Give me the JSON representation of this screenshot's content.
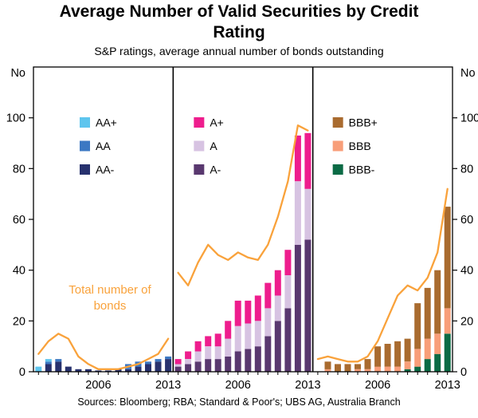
{
  "chart_data": {
    "type": "bar",
    "stacked": true,
    "title": "Average Number of Valid Securities by Credit Rating",
    "subtitle": "S&P ratings, average annual number of bonds outstanding",
    "sources": "Sources: Bloomberg; RBA; Standard & Poor's; UBS AG, Australia Branch",
    "unit_label": "No",
    "ylim": [
      0,
      120
    ],
    "yticks": [
      0,
      20,
      40,
      60,
      80,
      100
    ],
    "grid": false,
    "legend_position": "inside-top-of-each-panel",
    "years": [
      2000,
      2001,
      2002,
      2003,
      2004,
      2005,
      2006,
      2007,
      2008,
      2009,
      2010,
      2011,
      2012,
      2013
    ],
    "xtick_years": [
      2006,
      2013
    ],
    "total_line": {
      "label_lines": [
        "Total number of",
        "bonds"
      ],
      "color": "#F9A23B"
    },
    "panels": [
      {
        "group": "AA",
        "series": [
          {
            "name": "AA+",
            "color": "#5EC5EE",
            "values": [
              2,
              1,
              0,
              0,
              0,
              0,
              0,
              0,
              0,
              0,
              0,
              0,
              0,
              0
            ]
          },
          {
            "name": "AA",
            "color": "#3C78C3",
            "values": [
              0,
              1,
              1,
              0,
              0,
              0,
              0,
              0,
              0,
              2,
              2,
              1,
              1,
              1
            ]
          },
          {
            "name": "AA-",
            "color": "#27316E",
            "values": [
              0,
              3,
              4,
              2,
              1,
              1,
              0.5,
              0.5,
              1,
              1,
              2,
              3,
              4,
              5
            ]
          }
        ],
        "line_values": [
          7,
          12,
          15,
          13,
          6,
          3,
          1,
          1,
          1,
          2,
          3,
          5,
          7,
          13
        ]
      },
      {
        "group": "A",
        "series": [
          {
            "name": "A+",
            "color": "#EE1D8D",
            "values": [
              2,
              3,
              4,
              4,
              5,
              7,
              10,
              9,
              10,
              10,
              10,
              10,
              18,
              22
            ]
          },
          {
            "name": "A",
            "color": "#D7C3E2",
            "values": [
              1,
              2,
              4,
              5,
              5,
              7,
              10,
              10,
              10,
              11,
              10,
              13,
              25,
              20
            ]
          },
          {
            "name": "A-",
            "color": "#59386F",
            "values": [
              2,
              3,
              4,
              5,
              5,
              6,
              8,
              9,
              10,
              14,
              20,
              25,
              50,
              52
            ]
          }
        ],
        "line_values": [
          39,
          34,
          43,
          50,
          46,
          44,
          47,
          45,
          44,
          50,
          61,
          75,
          97,
          95
        ]
      },
      {
        "group": "BBB",
        "series": [
          {
            "name": "BBB+",
            "color": "#A96B2F",
            "values": [
              0,
              3,
              3,
              3,
              2,
              4,
              8,
              9,
              10,
              9,
              18,
              20,
              25,
              40
            ]
          },
          {
            "name": "BBB",
            "color": "#F89E79",
            "values": [
              0,
              1,
              0,
              0,
              1,
              1,
              2,
              2,
              2,
              3,
              7,
              8,
              8,
              10
            ]
          },
          {
            "name": "BBB-",
            "color": "#0B6B45",
            "values": [
              0,
              0,
              0,
              0,
              0,
              0,
              0,
              0,
              0,
              1,
              2,
              5,
              7,
              15
            ]
          }
        ],
        "line_values": [
          5,
          6,
          5,
          4,
          4,
          6,
          12,
          21,
          30,
          34,
          32,
          37,
          47,
          72
        ]
      }
    ]
  }
}
